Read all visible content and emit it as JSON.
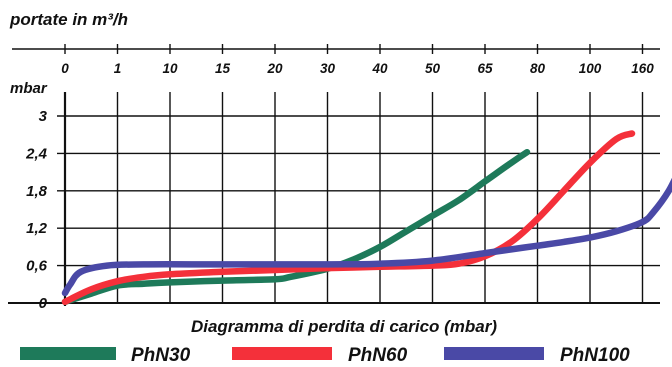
{
  "chart_data": {
    "type": "line",
    "top_axis": {
      "label": "portate in m³/h",
      "ticks": [
        "0",
        "1",
        "10",
        "15",
        "20",
        "30",
        "40",
        "50",
        "65",
        "80",
        "100",
        "160"
      ]
    },
    "y_axis": {
      "label": "mbar",
      "ticks": [
        "0",
        "0,6",
        "1,2",
        "1,8",
        "2,4",
        "3"
      ],
      "tick_values": [
        0,
        0.6,
        1.2,
        1.8,
        2.4,
        3
      ],
      "ylim": [
        0,
        3
      ]
    },
    "xlabel": "Diagramma di perdita di carico (mbar)",
    "grid": true,
    "legend_position": "bottom",
    "series": [
      {
        "name": "PhN30",
        "color": "#1e7a5a",
        "points": [
          [
            0,
            0.02
          ],
          [
            0.5,
            0.15
          ],
          [
            1,
            0.28
          ],
          [
            1.5,
            0.31
          ],
          [
            2,
            0.33
          ],
          [
            3,
            0.36
          ],
          [
            4,
            0.38
          ],
          [
            4.3,
            0.42
          ],
          [
            5,
            0.55
          ],
          [
            5.5,
            0.7
          ],
          [
            6,
            0.9
          ],
          [
            6.5,
            1.15
          ],
          [
            7,
            1.4
          ],
          [
            7.5,
            1.65
          ],
          [
            8,
            1.95
          ],
          [
            8.5,
            2.25
          ],
          [
            8.8,
            2.42
          ]
        ]
      },
      {
        "name": "PhN60",
        "color": "#f4303a",
        "points": [
          [
            0,
            0.02
          ],
          [
            0.5,
            0.22
          ],
          [
            1,
            0.35
          ],
          [
            1.5,
            0.42
          ],
          [
            2,
            0.46
          ],
          [
            3,
            0.5
          ],
          [
            4,
            0.53
          ],
          [
            5,
            0.56
          ],
          [
            6,
            0.58
          ],
          [
            7,
            0.6
          ],
          [
            7.5,
            0.63
          ],
          [
            8,
            0.75
          ],
          [
            8.5,
            0.98
          ],
          [
            9,
            1.35
          ],
          [
            9.5,
            1.8
          ],
          [
            10,
            2.25
          ],
          [
            10.5,
            2.63
          ],
          [
            10.8,
            2.72
          ]
        ]
      },
      {
        "name": "PhN100",
        "color": "#4a49a6",
        "points": [
          [
            0,
            0.16
          ],
          [
            0.1,
            0.3
          ],
          [
            0.3,
            0.5
          ],
          [
            0.8,
            0.6
          ],
          [
            1.5,
            0.62
          ],
          [
            3,
            0.62
          ],
          [
            5,
            0.62
          ],
          [
            6,
            0.63
          ],
          [
            7,
            0.68
          ],
          [
            8,
            0.8
          ],
          [
            8.5,
            0.86
          ],
          [
            9,
            0.92
          ],
          [
            9.5,
            0.98
          ],
          [
            10,
            1.05
          ],
          [
            10.5,
            1.15
          ],
          [
            11,
            1.3
          ],
          [
            11.2,
            1.45
          ],
          [
            11.5,
            1.8
          ],
          [
            11.8,
            2.3
          ],
          [
            12,
            2.6
          ]
        ]
      }
    ]
  }
}
